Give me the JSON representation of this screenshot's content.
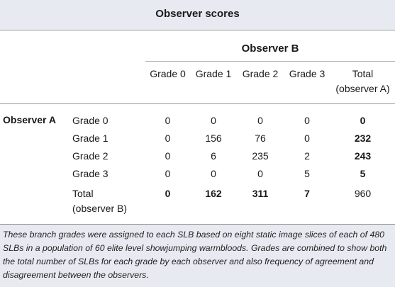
{
  "table": {
    "title": "Observer scores",
    "column_group": "Observer B",
    "row_group": "Observer A",
    "columns": [
      "Grade 0",
      "Grade 1",
      "Grade 2",
      "Grade 3"
    ],
    "total_column": [
      "Total",
      "(observer A)"
    ],
    "rows": [
      {
        "label": "Grade 0",
        "values": [
          "0",
          "0",
          "0",
          "0"
        ],
        "total": "0"
      },
      {
        "label": "Grade 1",
        "values": [
          "0",
          "156",
          "76",
          "0"
        ],
        "total": "232"
      },
      {
        "label": "Grade 2",
        "values": [
          "0",
          "6",
          "235",
          "2"
        ],
        "total": "243"
      },
      {
        "label": "Grade 3",
        "values": [
          "0",
          "0",
          "0",
          "5"
        ],
        "total": "5"
      }
    ],
    "total_row": {
      "label": [
        "Total",
        "(observer B)"
      ],
      "values": [
        "0",
        "162",
        "311",
        "7"
      ],
      "total": "960"
    },
    "footnote": "These branch grades were assigned to each SLB based on eight static image slices of each of 480 SLBs in a population of 60 elite level showjumping warmbloods. Grades are combined to show both the total number of SLBs for each grade by each observer and also frequency of agreement and disagreement between the observers."
  }
}
